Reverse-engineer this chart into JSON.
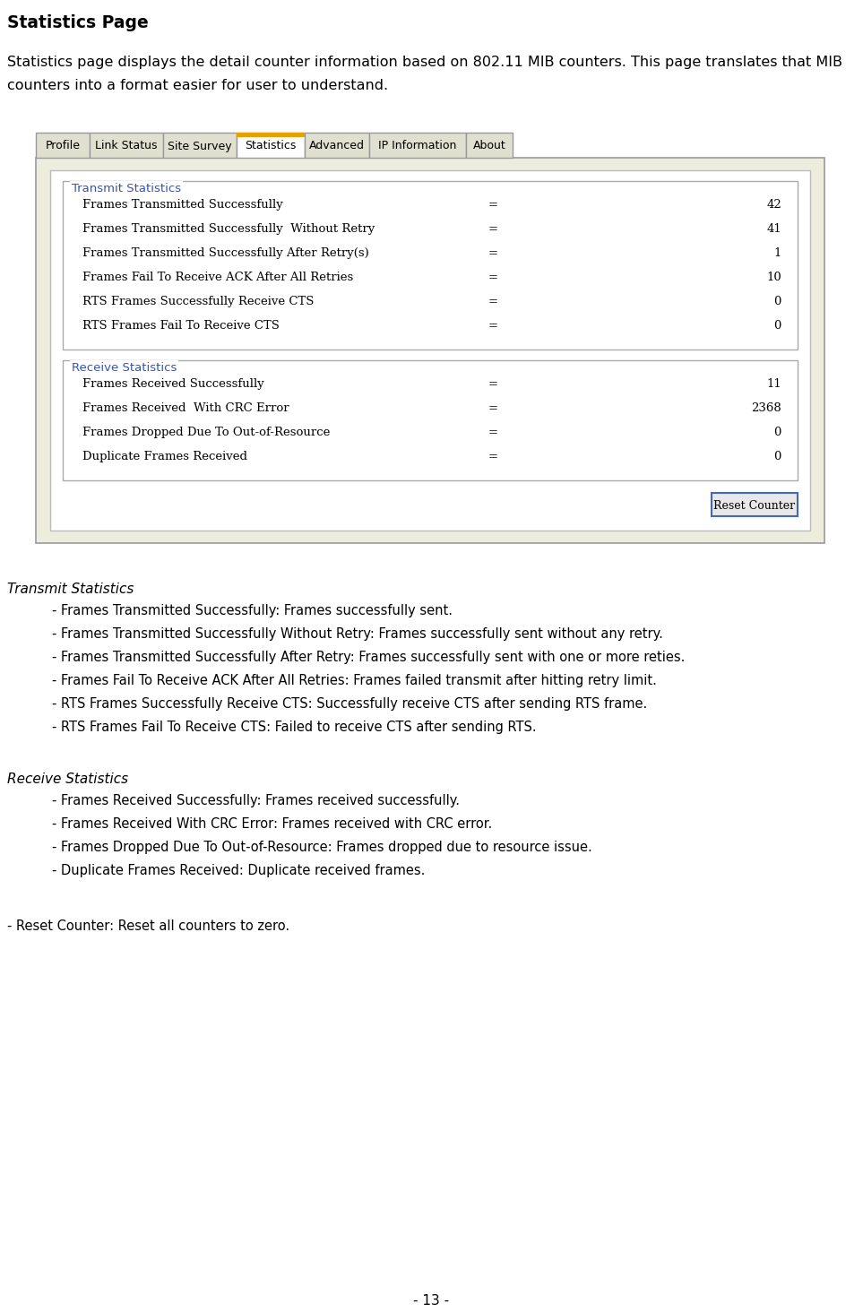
{
  "title": "Statistics Page",
  "intro_line1": "Statistics page displays the detail counter information based on 802.11 MIB counters. This page translates that MIB",
  "intro_line2": "counters into a format easier for user to understand.",
  "tab_labels": [
    "Profile",
    "Link Status",
    "Site Survey",
    "Statistics",
    "Advanced",
    "IP Information",
    "About"
  ],
  "active_tab": "Statistics",
  "transmit_section_label": "Transmit Statistics",
  "transmit_rows": [
    [
      "Frames Transmitted Successfully",
      "=",
      "42"
    ],
    [
      "Frames Transmitted Successfully  Without Retry",
      "=",
      "41"
    ],
    [
      "Frames Transmitted Successfully After Retry(s)",
      "=",
      "1"
    ],
    [
      "Frames Fail To Receive ACK After All Retries",
      "=",
      "10"
    ],
    [
      "RTS Frames Successfully Receive CTS",
      "=",
      "0"
    ],
    [
      "RTS Frames Fail To Receive CTS",
      "=",
      "0"
    ]
  ],
  "receive_section_label": "Receive Statistics",
  "receive_rows": [
    [
      "Frames Received Successfully",
      "=",
      "11"
    ],
    [
      "Frames Received  With CRC Error",
      "=",
      "2368"
    ],
    [
      "Frames Dropped Due To Out-of-Resource",
      "=",
      "0"
    ],
    [
      "Duplicate Frames Received",
      "=",
      "0"
    ]
  ],
  "reset_button_label": "Reset Counter",
  "transmit_desc_header": "Transmit Statistics",
  "transmit_desc_items": [
    "- Frames Transmitted Successfully: Frames successfully sent.",
    "- Frames Transmitted Successfully Without Retry: Frames successfully sent without any retry. ",
    "- Frames Transmitted Successfully After Retry: Frames successfully sent with one or more reties. ",
    "- Frames Fail To Receive ACK After All Retries: Frames failed transmit after hitting retry limit.",
    "- RTS Frames Successfully Receive CTS: Successfully receive CTS after sending RTS frame. ",
    "- RTS Frames Fail To Receive CTS: Failed to receive CTS after sending RTS. "
  ],
  "receive_desc_header": "Receive Statistics",
  "receive_desc_items": [
    "- Frames Received Successfully: Frames received successfully.",
    "- Frames Received With CRC Error: Frames received with CRC error. ",
    "- Frames Dropped Due To Out-of-Resource: Frames dropped due to resource issue.",
    "- Duplicate Frames Received: Duplicate received frames."
  ],
  "reset_desc": "- Reset Counter: Reset all counters to zero.",
  "page_number": "- 13 -",
  "bg_color": "#ffffff",
  "panel_bg": "#ededde",
  "section_label_color": "#3355bb",
  "tab_active_top_color": "#e8a000",
  "text_color": "#000000",
  "panel_border_color": "#999999",
  "row_font": "serif",
  "desc_font": "sans-serif"
}
